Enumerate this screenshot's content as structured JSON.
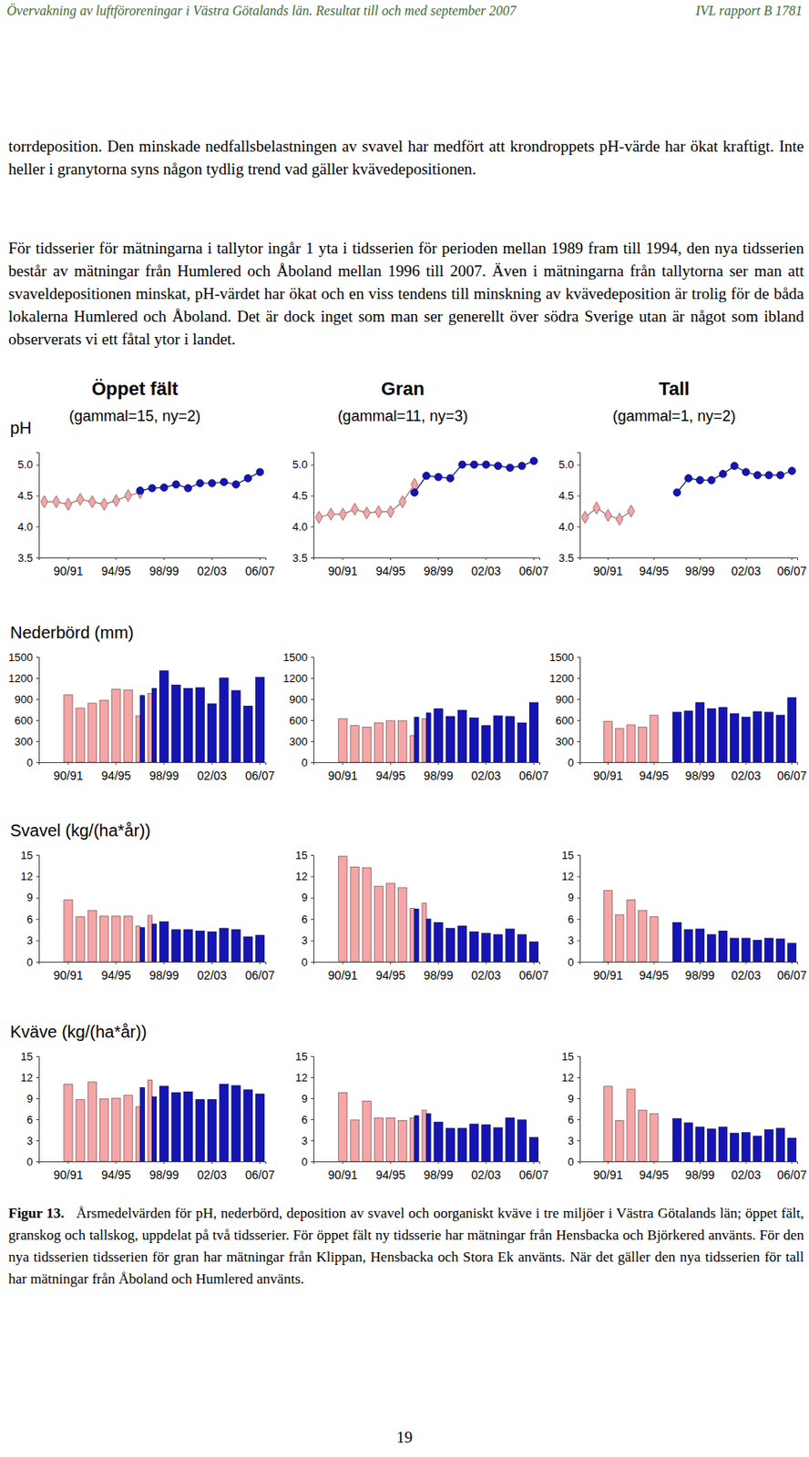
{
  "header": {
    "left": "Övervakning av luftföroreningar i Västra Götalands län. Resultat till och med september 2007",
    "right": "IVL rapport B 1781"
  },
  "paragraphs": [
    "torrdeposition. Den minskade nedfallsbelastningen av svavel har medfört att krondroppets pH-värde har ökat kraftigt. Inte heller i granytorna syns någon tydlig trend vad gäller kvävedepositionen.",
    "För tidsserier för mätningarna i tallytor ingår 1 yta i tidsserien för perioden mellan 1989 fram till 1994, den nya tidsserien består av mätningar från Humlered och Åboland mellan 1996 till 2007. Även i mätningarna från tallytorna ser man att svaveldepositionen minskat, pH-värdet har ökat och en viss tendens till minskning av kvävedeposition är trolig för de båda lokalerna Humlered och Åboland. Det är dock inget som man ser generellt över södra Sverige utan är något som ibland observerats vi ett fåtal ytor i landet."
  ],
  "chart_data": [
    {
      "type": "line",
      "title": "Öppet fält",
      "subtitle": "(gammal=15, ny=2)",
      "ylabel": "pH",
      "categories": [
        null,
        null,
        "90/91",
        null,
        null,
        null,
        "94/95",
        null,
        null,
        null,
        "98/99",
        null,
        null,
        null,
        "02/03",
        null,
        null,
        null,
        "06/07"
      ],
      "series": [
        {
          "color": "#f4a6a6",
          "marker": "diamond",
          "values": [
            4.4,
            4.4,
            4.36,
            4.44,
            4.4,
            4.36,
            4.42,
            4.5,
            4.55,
            null,
            null,
            null,
            null,
            null,
            null,
            null,
            null,
            null,
            null
          ]
        },
        {
          "color": "#1515b5",
          "marker": "circle",
          "values": [
            null,
            null,
            null,
            null,
            null,
            null,
            null,
            null,
            4.58,
            4.62,
            4.63,
            4.68,
            4.62,
            4.7,
            4.7,
            4.72,
            4.68,
            4.78,
            4.88
          ]
        }
      ],
      "ylim": [
        3.5,
        5.2
      ],
      "yticks": [
        3.5,
        {
          "value": 4,
          "label": "4.0"
        },
        4.5,
        {
          "value": 5,
          "label": "5.0"
        }
      ]
    },
    {
      "type": "line",
      "title": "Gran",
      "subtitle": "(gammal=11, ny=3)",
      "categories": [
        null,
        null,
        "90/91",
        null,
        null,
        null,
        "94/95",
        null,
        null,
        null,
        "98/99",
        null,
        null,
        null,
        "02/03",
        null,
        null,
        null,
        "06/07"
      ],
      "series": [
        {
          "color": "#f4a6a6",
          "marker": "diamond",
          "values": [
            4.15,
            4.2,
            4.2,
            4.28,
            4.22,
            4.24,
            4.24,
            4.4,
            4.68,
            null,
            null,
            null,
            null,
            null,
            null,
            null,
            null,
            null,
            null
          ]
        },
        {
          "color": "#1515b5",
          "marker": "circle",
          "values": [
            null,
            null,
            null,
            null,
            null,
            null,
            null,
            null,
            4.55,
            4.82,
            4.8,
            4.78,
            5.0,
            5.0,
            5.0,
            4.98,
            4.95,
            4.98,
            5.06
          ]
        }
      ],
      "ylim": [
        3.5,
        5.2
      ],
      "yticks": [
        3.5,
        {
          "value": 4,
          "label": "4.0"
        },
        4.5,
        {
          "value": 5,
          "label": "5.0"
        }
      ]
    },
    {
      "type": "line",
      "title": "Tall",
      "subtitle": "(gammal=1, ny=2)",
      "categories": [
        null,
        null,
        "90/91",
        null,
        null,
        null,
        "94/95",
        null,
        null,
        null,
        "98/99",
        null,
        null,
        null,
        "02/03",
        null,
        null,
        null,
        "06/07"
      ],
      "series": [
        {
          "color": "#f4a6a6",
          "marker": "diamond",
          "values": [
            4.15,
            4.3,
            4.18,
            4.12,
            4.25,
            null,
            null,
            null,
            null,
            null,
            null,
            null,
            null,
            null,
            null,
            null,
            null,
            null,
            null
          ]
        },
        {
          "color": "#1515b5",
          "marker": "circle",
          "values": [
            null,
            null,
            null,
            null,
            null,
            null,
            null,
            null,
            4.55,
            4.78,
            4.75,
            4.75,
            4.85,
            4.98,
            4.88,
            4.83,
            4.83,
            4.83,
            4.9
          ]
        }
      ],
      "ylim": [
        3.5,
        5.2
      ],
      "yticks": [
        3.5,
        {
          "value": 4,
          "label": "4.0"
        },
        4.5,
        {
          "value": 5,
          "label": "5.0"
        }
      ]
    },
    {
      "type": "bar",
      "ylabel": "Nederbörd (mm)",
      "categories": [
        null,
        null,
        "90/91",
        null,
        null,
        null,
        "94/95",
        null,
        null,
        null,
        "98/99",
        null,
        null,
        null,
        "02/03",
        null,
        null,
        null,
        "06/07"
      ],
      "series": [
        {
          "color": "#f4a6a6",
          "values": [
            null,
            null,
            960,
            770,
            840,
            880,
            1040,
            1030,
            660,
            980,
            null,
            null,
            null,
            null,
            null,
            null,
            null,
            null,
            null
          ]
        },
        {
          "color": "#1515b5",
          "values": [
            null,
            null,
            null,
            null,
            null,
            null,
            null,
            null,
            950,
            1050,
            1300,
            1100,
            1050,
            1060,
            830,
            1200,
            1020,
            800,
            1210
          ]
        }
      ],
      "ylim": [
        0,
        1500
      ],
      "yticks": [
        0,
        300,
        600,
        900,
        1200,
        1500
      ]
    },
    {
      "type": "bar",
      "categories": [
        null,
        null,
        "90/91",
        null,
        null,
        null,
        "94/95",
        null,
        null,
        null,
        "98/99",
        null,
        null,
        null,
        "02/03",
        null,
        null,
        null,
        "06/07"
      ],
      "series": [
        {
          "color": "#f4a6a6",
          "values": [
            null,
            null,
            620,
            520,
            500,
            560,
            590,
            590,
            380,
            620,
            null,
            null,
            null,
            null,
            null,
            null,
            null,
            null,
            null
          ]
        },
        {
          "color": "#1515b5",
          "values": [
            null,
            null,
            null,
            null,
            null,
            null,
            null,
            null,
            640,
            700,
            760,
            650,
            740,
            630,
            520,
            660,
            650,
            560,
            850
          ]
        }
      ],
      "ylim": [
        0,
        1500
      ],
      "yticks": [
        0,
        300,
        600,
        900,
        1200,
        1500
      ]
    },
    {
      "type": "bar",
      "categories": [
        null,
        null,
        "90/91",
        null,
        null,
        null,
        "94/95",
        null,
        null,
        null,
        "98/99",
        null,
        null,
        null,
        "02/03",
        null,
        null,
        null,
        "06/07"
      ],
      "series": [
        {
          "color": "#f4a6a6",
          "values": [
            null,
            null,
            580,
            480,
            530,
            500,
            670,
            null,
            null,
            null,
            null,
            null,
            null,
            null,
            null,
            null,
            null,
            null,
            null
          ]
        },
        {
          "color": "#1515b5",
          "values": [
            null,
            null,
            null,
            null,
            null,
            null,
            null,
            null,
            710,
            730,
            850,
            760,
            780,
            690,
            640,
            720,
            710,
            670,
            920
          ]
        }
      ],
      "ylim": [
        0,
        1500
      ],
      "yticks": [
        0,
        300,
        600,
        900,
        1200,
        1500
      ]
    },
    {
      "type": "bar",
      "ylabel": "Svavel (kg/(ha*år))",
      "categories": [
        null,
        null,
        "90/91",
        null,
        null,
        null,
        "94/95",
        null,
        null,
        null,
        "98/99",
        null,
        null,
        null,
        "02/03",
        null,
        null,
        null,
        "06/07"
      ],
      "series": [
        {
          "color": "#f4a6a6",
          "values": [
            null,
            null,
            8.7,
            6.3,
            7.2,
            6.4,
            6.4,
            6.4,
            5.0,
            6.5,
            null,
            null,
            null,
            null,
            null,
            null,
            null,
            null,
            null
          ]
        },
        {
          "color": "#1515b5",
          "values": [
            null,
            null,
            null,
            null,
            null,
            null,
            null,
            null,
            4.8,
            5.3,
            5.6,
            4.5,
            4.5,
            4.3,
            4.2,
            4.7,
            4.5,
            3.5,
            3.7
          ]
        }
      ],
      "ylim": [
        0,
        15
      ],
      "yticks": [
        0,
        3,
        6,
        9,
        12,
        15
      ]
    },
    {
      "type": "bar",
      "categories": [
        null,
        null,
        "90/91",
        null,
        null,
        null,
        "94/95",
        null,
        null,
        null,
        "98/99",
        null,
        null,
        null,
        "02/03",
        null,
        null,
        null,
        "06/07"
      ],
      "series": [
        {
          "color": "#f4a6a6",
          "values": [
            null,
            null,
            14.8,
            13.3,
            13.2,
            10.6,
            11.0,
            10.4,
            7.5,
            8.2,
            null,
            null,
            null,
            null,
            null,
            null,
            null,
            null,
            null
          ]
        },
        {
          "color": "#1515b5",
          "values": [
            null,
            null,
            null,
            null,
            null,
            null,
            null,
            null,
            7.4,
            6.0,
            5.5,
            4.7,
            5.0,
            4.2,
            4.0,
            3.8,
            4.6,
            3.8,
            2.8
          ]
        }
      ],
      "ylim": [
        0,
        15
      ],
      "yticks": [
        0,
        3,
        6,
        9,
        12,
        15
      ]
    },
    {
      "type": "bar",
      "categories": [
        null,
        null,
        "90/91",
        null,
        null,
        null,
        "94/95",
        null,
        null,
        null,
        "98/99",
        null,
        null,
        null,
        "02/03",
        null,
        null,
        null,
        "06/07"
      ],
      "series": [
        {
          "color": "#f4a6a6",
          "values": [
            null,
            null,
            10.0,
            6.6,
            8.7,
            7.2,
            6.3,
            null,
            null,
            null,
            null,
            null,
            null,
            null,
            null,
            null,
            null,
            null,
            null
          ]
        },
        {
          "color": "#1515b5",
          "values": [
            null,
            null,
            null,
            null,
            null,
            null,
            null,
            null,
            5.5,
            4.5,
            4.6,
            3.8,
            4.3,
            3.3,
            3.3,
            3.0,
            3.3,
            3.2,
            2.6
          ]
        }
      ],
      "ylim": [
        0,
        15
      ],
      "yticks": [
        0,
        3,
        6,
        9,
        12,
        15
      ]
    },
    {
      "type": "bar",
      "ylabel": "Kväve (kg/(ha*år))",
      "categories": [
        null,
        null,
        "90/91",
        null,
        null,
        null,
        "94/95",
        null,
        null,
        null,
        "98/99",
        null,
        null,
        null,
        "02/03",
        null,
        null,
        null,
        "06/07"
      ],
      "series": [
        {
          "color": "#f4a6a6",
          "values": [
            null,
            null,
            11.0,
            8.8,
            11.3,
            8.9,
            9.0,
            9.4,
            7.8,
            11.6,
            null,
            null,
            null,
            null,
            null,
            null,
            null,
            null,
            null
          ]
        },
        {
          "color": "#1515b5",
          "values": [
            null,
            null,
            null,
            null,
            null,
            null,
            null,
            null,
            10.5,
            9.2,
            10.7,
            9.8,
            9.9,
            8.8,
            8.8,
            11.0,
            10.8,
            10.2,
            9.6
          ]
        }
      ],
      "ylim": [
        0,
        15
      ],
      "yticks": [
        0,
        3,
        6,
        9,
        12,
        15
      ]
    },
    {
      "type": "bar",
      "categories": [
        null,
        null,
        "90/91",
        null,
        null,
        null,
        "94/95",
        null,
        null,
        null,
        "98/99",
        null,
        null,
        null,
        "02/03",
        null,
        null,
        null,
        "06/07"
      ],
      "series": [
        {
          "color": "#f4a6a6",
          "values": [
            null,
            null,
            9.8,
            5.9,
            8.6,
            6.2,
            6.2,
            5.8,
            6.2,
            7.3,
            null,
            null,
            null,
            null,
            null,
            null,
            null,
            null,
            null
          ]
        },
        {
          "color": "#1515b5",
          "values": [
            null,
            null,
            null,
            null,
            null,
            null,
            null,
            null,
            6.5,
            6.8,
            5.6,
            4.7,
            4.7,
            5.3,
            5.2,
            4.8,
            6.2,
            5.9,
            3.4
          ]
        }
      ],
      "ylim": [
        0,
        15
      ],
      "yticks": [
        0,
        3,
        6,
        9,
        12,
        15
      ]
    },
    {
      "type": "bar",
      "categories": [
        null,
        null,
        "90/91",
        null,
        null,
        null,
        "94/95",
        null,
        null,
        null,
        "98/99",
        null,
        null,
        null,
        "02/03",
        null,
        null,
        null,
        "06/07"
      ],
      "series": [
        {
          "color": "#f4a6a6",
          "values": [
            null,
            null,
            10.7,
            5.8,
            10.3,
            7.3,
            6.8,
            null,
            null,
            null,
            null,
            null,
            null,
            null,
            null,
            null,
            null,
            null,
            null
          ]
        },
        {
          "color": "#1515b5",
          "values": [
            null,
            null,
            null,
            null,
            null,
            null,
            null,
            null,
            6.1,
            5.5,
            4.9,
            4.6,
            4.9,
            4.0,
            4.1,
            3.6,
            4.5,
            4.7,
            3.3
          ]
        }
      ],
      "ylim": [
        0,
        15
      ],
      "yticks": [
        0,
        3,
        6,
        9,
        12,
        15
      ]
    }
  ],
  "caption": {
    "label": "Figur 13.",
    "text": "Årsmedelvärden för pH, nederbörd, deposition av svavel och oorganiskt kväve i tre miljöer i Västra Götalands län; öppet fält, granskog och tallskog, uppdelat på två tidsserier. För öppet fält ny tidsserie har mätningar från Hensbacka och Björkered använts. För den nya tidsserien tidsserien för gran har mätningar från Klippan, Hensbacka och Stora Ek använts. När det gäller den nya tidsserien för tall har mätningar från Åboland och Humlered använts."
  },
  "page_number": "19"
}
